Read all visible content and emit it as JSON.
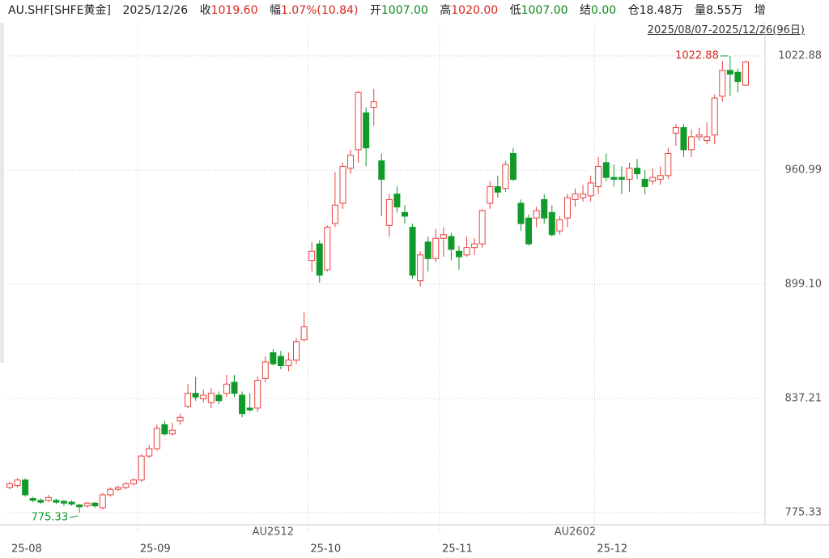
{
  "header": {
    "symbol": "AU.SHF[SHFE黄金]",
    "date": "2025/12/26",
    "range": "2025/08/07-2025/12/26(96日)",
    "fields": [
      {
        "label": "收",
        "value": "1019.60"
      },
      {
        "label": "幅",
        "value": "1.07%(10.84)"
      },
      {
        "label": "开",
        "value": "1007.00"
      },
      {
        "label": "高",
        "value": "1020.00"
      },
      {
        "label": "低",
        "value": "1007.00"
      },
      {
        "label": "结",
        "value": "0.00"
      },
      {
        "label": "仓",
        "value": "18.48万"
      },
      {
        "label": "量",
        "value": "8.55万"
      },
      {
        "label": "增"
      }
    ]
  },
  "chart_data": {
    "type": "candlestick",
    "up_color": "#e8413c",
    "down_color": "#109a2a",
    "ylim": [
      768.75,
      1035.6
    ],
    "yticks": [
      1022.88,
      960.99,
      {
        "value": 899.1,
        "label": "899.10"
      },
      837.21,
      775.33
    ],
    "categories": [
      "25-08",
      null,
      null,
      null,
      null,
      null,
      null,
      null,
      null,
      null,
      null,
      null,
      null,
      null,
      null,
      null,
      null,
      "25-09",
      null,
      null,
      null,
      null,
      null,
      null,
      null,
      null,
      null,
      null,
      null,
      null,
      null,
      null,
      null,
      null,
      "AU2512",
      null,
      null,
      null,
      null,
      "25-10",
      null,
      null,
      null,
      null,
      null,
      null,
      null,
      null,
      null,
      null,
      null,
      null,
      null,
      null,
      null,
      null,
      "25-11",
      null,
      null,
      null,
      null,
      null,
      null,
      null,
      null,
      null,
      null,
      null,
      null,
      null,
      null,
      null,
      null,
      "AU2602",
      null,
      null,
      "25-12",
      null,
      null,
      null,
      null,
      null,
      null,
      null,
      null,
      null,
      null,
      null,
      null,
      null,
      null,
      null,
      null,
      null,
      null,
      null
    ],
    "annotations": [
      {
        "index": 93,
        "value": 1022.88,
        "label": "1022.88"
      },
      {
        "index": 9,
        "value": 775.33,
        "label": "775.33"
      }
    ],
    "series": [
      {
        "open": [
          789,
          790,
          793,
          783,
          782,
          782,
          782,
          781.5,
          781,
          779.5,
          779,
          780.5,
          778,
          785,
          788,
          789,
          791,
          793,
          806,
          810,
          823,
          818,
          825,
          833,
          840,
          837,
          835,
          839,
          840,
          846,
          839,
          832,
          832,
          848,
          862,
          860,
          855,
          858,
          869,
          912,
          921,
          907,
          932,
          943,
          962,
          972,
          992,
          995,
          966,
          931,
          948,
          938,
          930,
          901,
          922,
          913,
          924,
          925,
          917,
          915,
          919,
          921,
          943,
          952,
          951,
          970,
          943,
          935,
          935,
          945,
          938,
          928,
          935,
          945,
          946,
          947,
          952,
          965,
          957,
          957,
          956,
          962,
          956,
          955,
          956,
          958,
          981,
          984,
          972,
          979,
          977,
          980,
          1001,
          1015,
          1014,
          1007
        ],
        "close": [
          791,
          793,
          785,
          782,
          781,
          783.5,
          781,
          780.5,
          780,
          778.5,
          780.5,
          779,
          785,
          788,
          789,
          791,
          793,
          806,
          810,
          821,
          818,
          820,
          827,
          840,
          838,
          839,
          840,
          836,
          845,
          840,
          829,
          831,
          847,
          857,
          856,
          855,
          858,
          868,
          876,
          917,
          904,
          930,
          942,
          963,
          969,
          1003,
          973,
          998,
          956,
          945,
          941,
          936,
          904,
          915,
          913,
          924,
          926,
          918,
          914,
          919,
          921,
          939,
          952,
          949,
          964,
          956,
          932,
          921,
          939,
          935,
          926,
          934,
          946,
          948,
          948,
          954,
          963,
          957,
          956,
          956,
          962,
          959,
          952,
          957,
          958,
          970,
          984,
          972,
          979,
          980,
          979,
          1000,
          1015,
          1013,
          1009,
          1019.6
        ],
        "high": [
          792,
          794,
          794,
          784,
          783,
          785,
          783,
          782,
          782,
          780,
          781,
          781,
          786,
          789,
          790,
          792,
          794,
          807,
          812,
          823,
          825,
          824,
          829,
          845,
          849,
          842,
          843,
          841,
          850,
          850,
          841,
          840,
          849,
          860,
          864,
          863,
          862,
          870,
          884,
          922,
          923,
          931,
          960,
          965,
          972,
          1004,
          995,
          1005,
          970,
          948,
          952,
          942,
          932,
          917,
          925,
          929,
          930,
          927,
          920,
          925,
          924,
          940,
          955,
          958,
          966,
          973,
          945,
          937,
          941,
          948,
          942,
          936,
          948,
          951,
          953,
          958,
          968,
          970,
          964,
          963,
          965,
          967,
          961,
          962,
          963,
          973,
          986,
          986,
          983,
          984,
          987,
          1002,
          1020,
          1022.88,
          1016,
          1020
        ],
        "low": [
          788,
          789,
          784,
          781,
          780,
          781,
          780,
          779,
          779,
          775.33,
          778,
          778,
          777,
          784,
          787,
          788,
          790,
          792,
          805,
          809,
          817,
          817,
          823,
          832,
          836,
          835,
          832,
          834,
          838,
          838,
          827,
          830,
          830,
          846,
          855,
          853,
          852,
          856,
          868,
          906,
          900,
          906,
          930,
          940,
          959,
          965,
          963,
          985,
          936,
          925,
          938,
          932,
          902,
          898,
          906,
          911,
          914,
          912,
          907,
          914,
          915,
          919,
          940,
          946,
          949,
          955,
          928,
          920,
          930,
          932,
          925,
          926,
          930,
          941,
          944,
          944,
          948,
          955,
          952,
          948,
          949,
          956,
          948,
          953,
          953,
          956,
          974,
          968,
          968,
          977,
          975,
          975,
          998,
          1001,
          1003,
          1007
        ]
      }
    ]
  }
}
